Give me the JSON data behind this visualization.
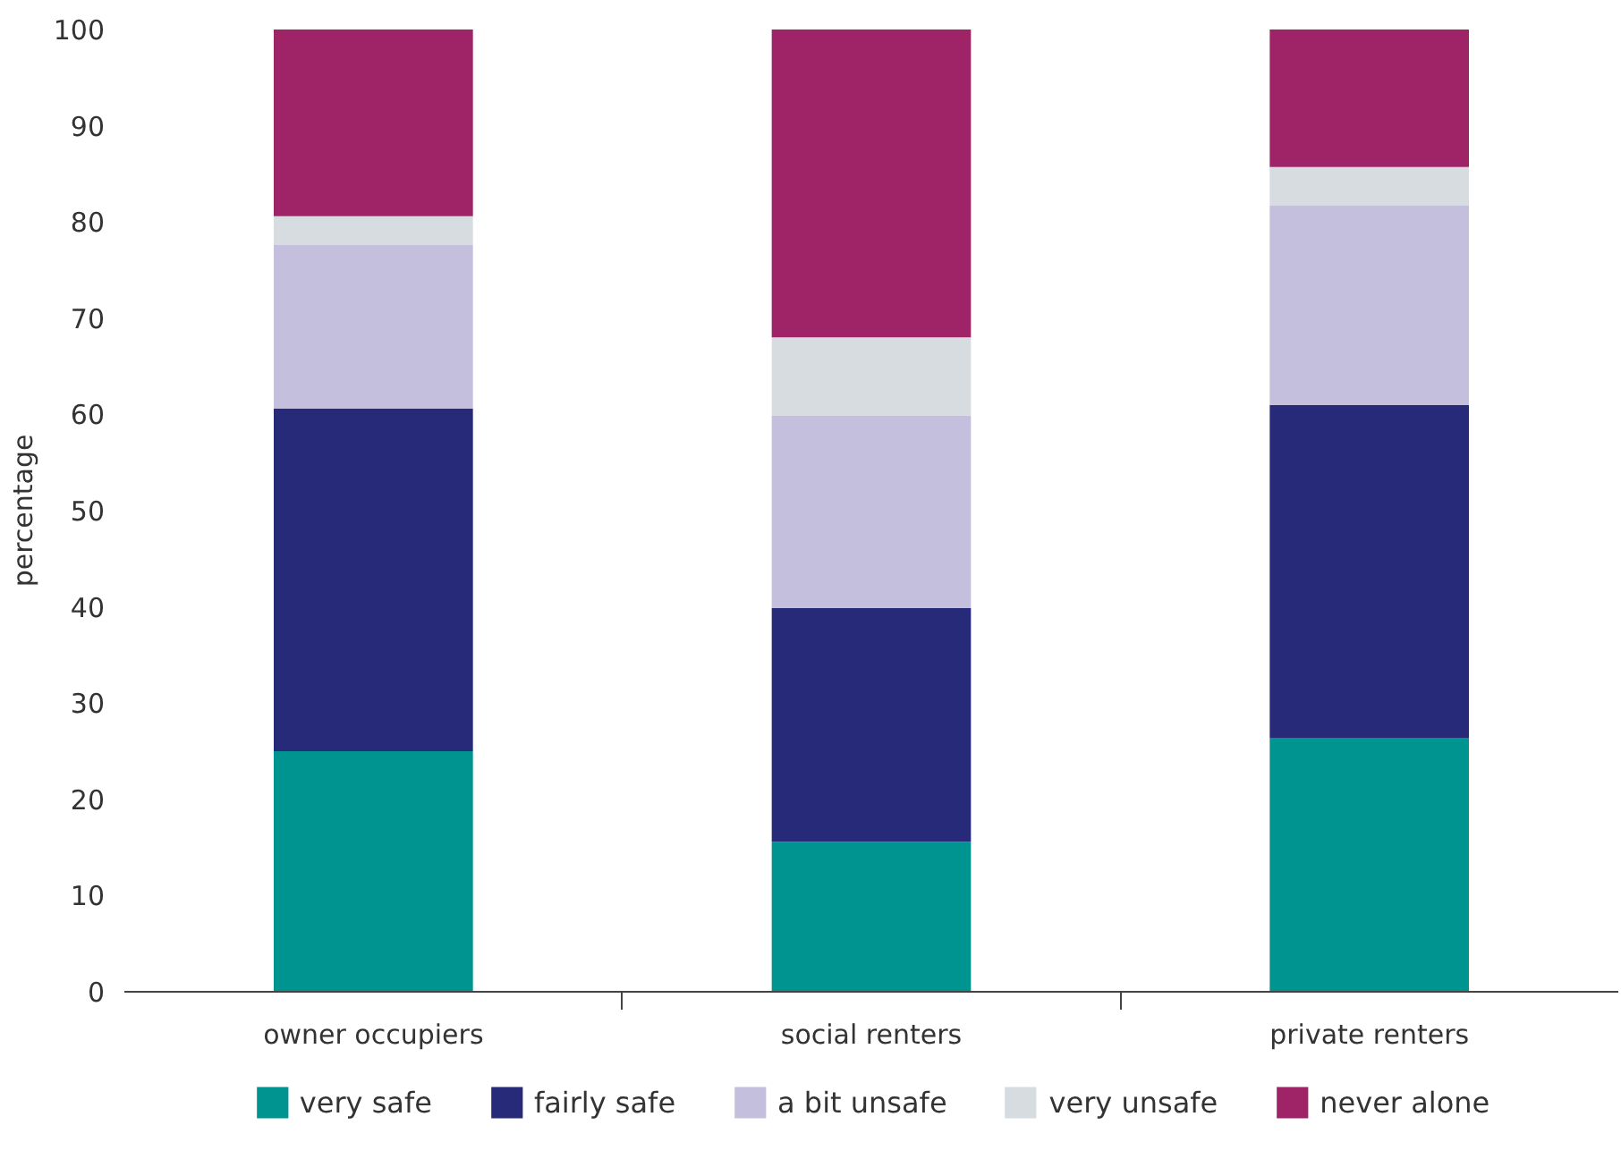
{
  "chart_data": {
    "type": "bar",
    "stacked": true,
    "ylabel": "percentage",
    "categories": [
      "owner occupiers",
      "social renters",
      "private renters"
    ],
    "ylim": [
      0,
      100
    ],
    "yticks": [
      0,
      10,
      20,
      30,
      40,
      50,
      60,
      70,
      80,
      90,
      100
    ],
    "grid": false,
    "legend": "bottom",
    "series": [
      {
        "name": "very safe",
        "color": "#009490",
        "values": [
          25.0,
          15.6,
          26.4
        ]
      },
      {
        "name": "fairly safe",
        "color": "#262a78",
        "values": [
          35.6,
          24.3,
          34.6
        ]
      },
      {
        "name": "a bit unsafe",
        "color": "#c4bfdc",
        "values": [
          17.0,
          20.0,
          20.7
        ]
      },
      {
        "name": "very unsafe",
        "color": "#d6dcdf",
        "values": [
          3.0,
          8.1,
          4.0
        ]
      },
      {
        "name": "never alone",
        "color": "#9e2467",
        "values": [
          19.4,
          32.0,
          14.3
        ]
      }
    ]
  }
}
